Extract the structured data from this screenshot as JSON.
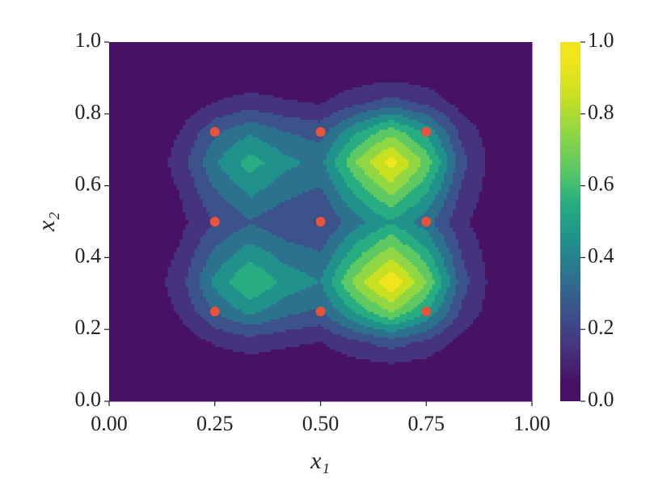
{
  "chart_data": {
    "type": "contour",
    "xlabel": "x₁",
    "ylabel": "x₂",
    "x": [
      0,
      0.0833,
      0.1667,
      0.25,
      0.3333,
      0.4167,
      0.5,
      0.5833,
      0.6667,
      0.75,
      0.8333,
      0.9167,
      1
    ],
    "y": [
      0,
      0.0833,
      0.1667,
      0.25,
      0.3333,
      0.4167,
      0.5,
      0.5833,
      0.6667,
      0.75,
      0.8333,
      0.9167,
      1
    ],
    "z": [
      [
        0,
        0,
        0,
        0,
        0,
        0,
        0,
        0,
        0,
        0,
        0,
        0,
        0
      ],
      [
        0,
        0,
        0.01,
        0.02,
        0.03,
        0.02,
        0.02,
        0.03,
        0.04,
        0.03,
        0.01,
        0,
        0
      ],
      [
        0,
        0.01,
        0.04,
        0.11,
        0.15,
        0.12,
        0.1,
        0.18,
        0.25,
        0.18,
        0.06,
        0.01,
        0
      ],
      [
        0,
        0.02,
        0.11,
        0.3,
        0.43,
        0.33,
        0.28,
        0.52,
        0.71,
        0.5,
        0.18,
        0.03,
        0
      ],
      [
        0,
        0.03,
        0.15,
        0.43,
        0.61,
        0.47,
        0.4,
        0.74,
        1.0,
        0.71,
        0.25,
        0.04,
        0
      ],
      [
        0,
        0.02,
        0.11,
        0.32,
        0.45,
        0.35,
        0.3,
        0.55,
        0.75,
        0.53,
        0.19,
        0.03,
        0
      ],
      [
        0,
        0.01,
        0.07,
        0.2,
        0.29,
        0.22,
        0.19,
        0.36,
        0.49,
        0.34,
        0.12,
        0.02,
        0
      ],
      [
        0,
        0.02,
        0.1,
        0.29,
        0.42,
        0.33,
        0.28,
        0.52,
        0.72,
        0.51,
        0.18,
        0.03,
        0
      ],
      [
        0,
        0.02,
        0.14,
        0.39,
        0.55,
        0.43,
        0.37,
        0.7,
        0.96,
        0.67,
        0.24,
        0.04,
        0
      ],
      [
        0,
        0.02,
        0.1,
        0.28,
        0.39,
        0.3,
        0.26,
        0.49,
        0.67,
        0.48,
        0.17,
        0.03,
        0
      ],
      [
        0,
        0.01,
        0.03,
        0.1,
        0.14,
        0.11,
        0.09,
        0.17,
        0.24,
        0.17,
        0.06,
        0.01,
        0
      ],
      [
        0,
        0,
        0.01,
        0.02,
        0.02,
        0.02,
        0.02,
        0.03,
        0.04,
        0.03,
        0.01,
        0,
        0
      ],
      [
        0,
        0,
        0,
        0,
        0,
        0,
        0,
        0,
        0,
        0,
        0,
        0,
        0
      ]
    ],
    "levels": [
      0,
      0.1,
      0.2,
      0.3,
      0.4,
      0.5,
      0.6,
      0.7,
      0.8,
      0.9,
      1.0
    ],
    "colors": [
      "#471164",
      "#46337f",
      "#3b528b",
      "#2c728e",
      "#21918c",
      "#27ad81",
      "#5ec962",
      "#90d743",
      "#c8e020",
      "#f1e51d"
    ],
    "xlim": [
      0,
      1
    ],
    "ylim": [
      0,
      1
    ],
    "xticks": [
      {
        "value": 0,
        "label": "0.00"
      },
      {
        "value": 0.25,
        "label": "0.25"
      },
      {
        "value": 0.5,
        "label": "0.50"
      },
      {
        "value": 0.75,
        "label": "0.75"
      },
      {
        "value": 1,
        "label": "1.00"
      }
    ],
    "yticks": [
      {
        "value": 0,
        "label": "0.0"
      },
      0.2,
      0.4,
      0.6,
      0.8,
      {
        "value": 1,
        "label": "1.0"
      }
    ],
    "colorbar": {
      "lim": [
        0,
        1
      ],
      "ticks": [
        {
          "value": 0,
          "label": "0.0"
        },
        0.2,
        0.4,
        0.6,
        0.8,
        {
          "value": 1,
          "label": "1.0"
        }
      ]
    },
    "scatter": {
      "color": "#e8533b",
      "x": [
        0.25,
        0.25,
        0.25,
        0.5,
        0.5,
        0.5,
        0.75,
        0.75,
        0.75
      ],
      "y": [
        0.25,
        0.5,
        0.75,
        0.25,
        0.5,
        0.75,
        0.25,
        0.5,
        0.75
      ]
    }
  }
}
